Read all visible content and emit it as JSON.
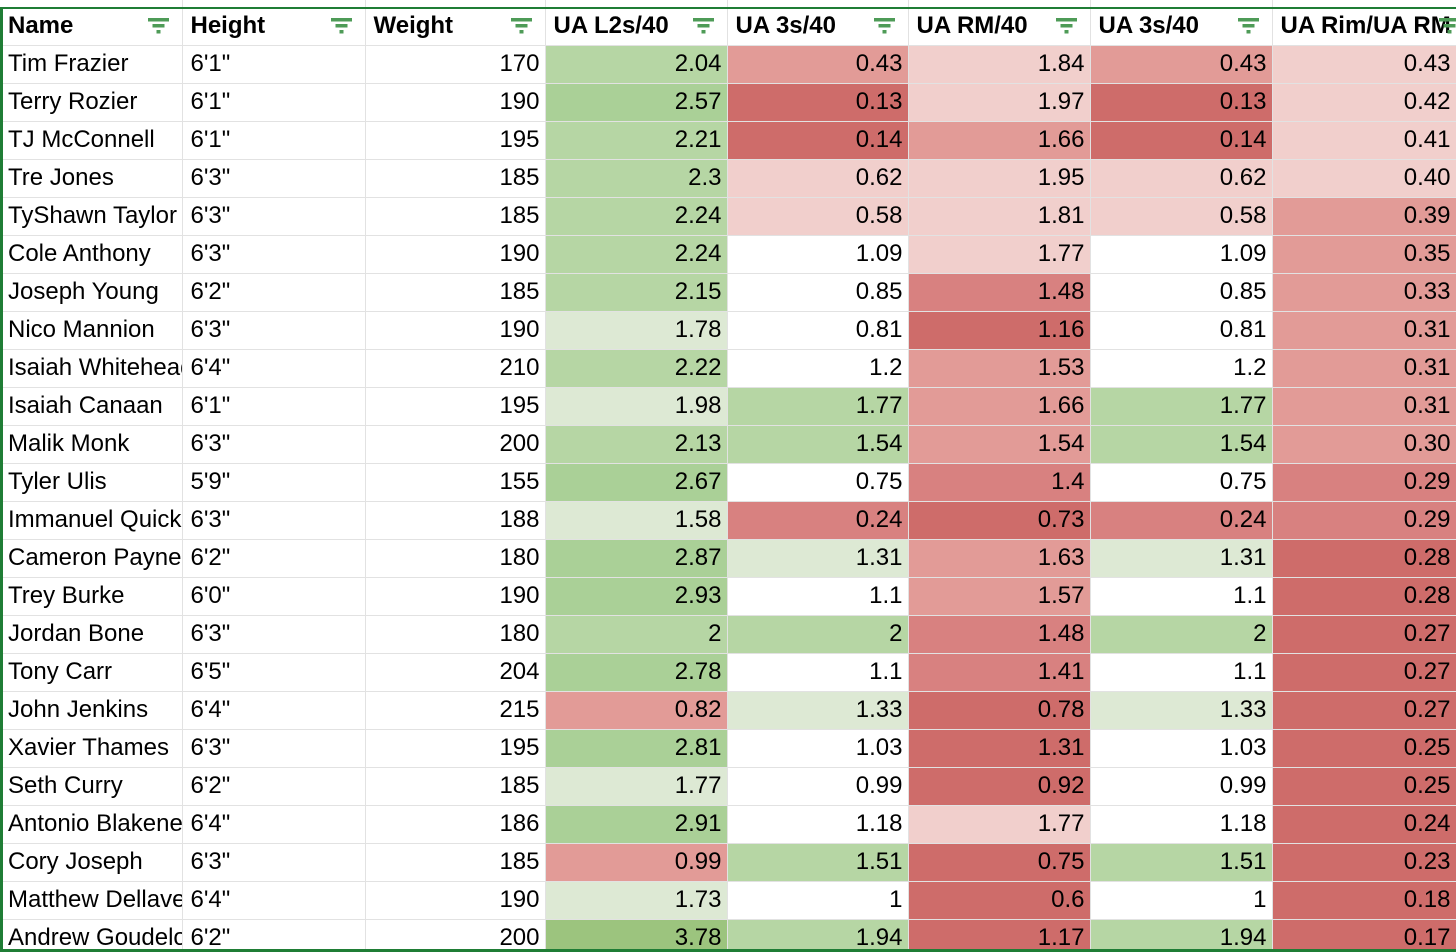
{
  "app": {
    "type": "spreadsheet",
    "description": "player athletic testing table with red-green conditional formatting and active filter range"
  },
  "colors": {
    "filter_range_border": "#1f7d35",
    "filter_icon_green": "#4e9b57",
    "gridline": "#e2e2e2",
    "header_bg": "#ffffff",
    "text": "#000000"
  },
  "palette": {
    "G1": "#dde9d4",
    "G2": "#b6d6a4",
    "G3": "#aad097",
    "G4": "#9cc47e",
    "W": "#ffffff",
    "R1": "#f1cfcc",
    "R2": "#e29b97",
    "R3": "#d88180",
    "R4": "#ce6c6a"
  },
  "table": {
    "columns": [
      {
        "label": "Name",
        "align": "left",
        "filter_icon": true
      },
      {
        "label": "Height",
        "align": "left",
        "filter_icon": true
      },
      {
        "label": "Weight",
        "align": "right",
        "filter_icon": true
      },
      {
        "label": "UA L2s/40",
        "align": "right",
        "filter_icon": true
      },
      {
        "label": "UA 3s/40",
        "align": "right",
        "filter_icon": true
      },
      {
        "label": "UA RM/40",
        "align": "right",
        "filter_icon": true
      },
      {
        "label": "UA 3s/40",
        "align": "right",
        "filter_icon": true
      },
      {
        "label": "UA Rim/UA RM",
        "align": "right",
        "filter_icon": true
      }
    ],
    "rows": [
      {
        "name": "Tim Frazier",
        "height": "6'1\"",
        "weight": "170",
        "cells": [
          {
            "v": "2.04",
            "c": "G2"
          },
          {
            "v": "0.43",
            "c": "R2"
          },
          {
            "v": "1.84",
            "c": "R1"
          },
          {
            "v": "0.43",
            "c": "R2"
          },
          {
            "v": "0.43",
            "c": "R1"
          }
        ]
      },
      {
        "name": "Terry Rozier",
        "height": "6'1\"",
        "weight": "190",
        "cells": [
          {
            "v": "2.57",
            "c": "G3"
          },
          {
            "v": "0.13",
            "c": "R4"
          },
          {
            "v": "1.97",
            "c": "R1"
          },
          {
            "v": "0.13",
            "c": "R4"
          },
          {
            "v": "0.42",
            "c": "R1"
          }
        ]
      },
      {
        "name": "TJ McConnell",
        "height": "6'1\"",
        "weight": "195",
        "cells": [
          {
            "v": "2.21",
            "c": "G2"
          },
          {
            "v": "0.14",
            "c": "R4"
          },
          {
            "v": "1.66",
            "c": "R2"
          },
          {
            "v": "0.14",
            "c": "R4"
          },
          {
            "v": "0.41",
            "c": "R1"
          }
        ]
      },
      {
        "name": "Tre Jones",
        "height": "6'3\"",
        "weight": "185",
        "cells": [
          {
            "v": "2.3",
            "c": "G2"
          },
          {
            "v": "0.62",
            "c": "R1"
          },
          {
            "v": "1.95",
            "c": "R1"
          },
          {
            "v": "0.62",
            "c": "R1"
          },
          {
            "v": "0.40",
            "c": "R1"
          }
        ]
      },
      {
        "name": "TyShawn Taylor",
        "height": "6'3\"",
        "weight": "185",
        "cells": [
          {
            "v": "2.24",
            "c": "G2"
          },
          {
            "v": "0.58",
            "c": "R1"
          },
          {
            "v": "1.81",
            "c": "R1"
          },
          {
            "v": "0.58",
            "c": "R1"
          },
          {
            "v": "0.39",
            "c": "R2"
          }
        ]
      },
      {
        "name": "Cole Anthony",
        "height": "6'3\"",
        "weight": "190",
        "cells": [
          {
            "v": "2.24",
            "c": "G2"
          },
          {
            "v": "1.09",
            "c": "W"
          },
          {
            "v": "1.77",
            "c": "R1"
          },
          {
            "v": "1.09",
            "c": "W"
          },
          {
            "v": "0.35",
            "c": "R2"
          }
        ]
      },
      {
        "name": "Joseph Young",
        "height": "6'2\"",
        "weight": "185",
        "cells": [
          {
            "v": "2.15",
            "c": "G2"
          },
          {
            "v": "0.85",
            "c": "W"
          },
          {
            "v": "1.48",
            "c": "R3"
          },
          {
            "v": "0.85",
            "c": "W"
          },
          {
            "v": "0.33",
            "c": "R2"
          }
        ]
      },
      {
        "name": "Nico Mannion",
        "height": "6'3\"",
        "weight": "190",
        "cells": [
          {
            "v": "1.78",
            "c": "G1"
          },
          {
            "v": "0.81",
            "c": "W"
          },
          {
            "v": "1.16",
            "c": "R4"
          },
          {
            "v": "0.81",
            "c": "W"
          },
          {
            "v": "0.31",
            "c": "R2"
          }
        ]
      },
      {
        "name": "Isaiah Whitehead",
        "height": "6'4\"",
        "weight": "210",
        "cells": [
          {
            "v": "2.22",
            "c": "G2"
          },
          {
            "v": "1.2",
            "c": "W"
          },
          {
            "v": "1.53",
            "c": "R2"
          },
          {
            "v": "1.2",
            "c": "W"
          },
          {
            "v": "0.31",
            "c": "R2"
          }
        ]
      },
      {
        "name": "Isaiah Canaan",
        "height": "6'1\"",
        "weight": "195",
        "cells": [
          {
            "v": "1.98",
            "c": "G1"
          },
          {
            "v": "1.77",
            "c": "G2"
          },
          {
            "v": "1.66",
            "c": "R2"
          },
          {
            "v": "1.77",
            "c": "G2"
          },
          {
            "v": "0.31",
            "c": "R2"
          }
        ]
      },
      {
        "name": "Malik Monk",
        "height": "6'3\"",
        "weight": "200",
        "cells": [
          {
            "v": "2.13",
            "c": "G2"
          },
          {
            "v": "1.54",
            "c": "G2"
          },
          {
            "v": "1.54",
            "c": "R2"
          },
          {
            "v": "1.54",
            "c": "G2"
          },
          {
            "v": "0.30",
            "c": "R2"
          }
        ]
      },
      {
        "name": "Tyler Ulis",
        "height": "5'9\"",
        "weight": "155",
        "cells": [
          {
            "v": "2.67",
            "c": "G3"
          },
          {
            "v": "0.75",
            "c": "W"
          },
          {
            "v": "1.4",
            "c": "R3"
          },
          {
            "v": "0.75",
            "c": "W"
          },
          {
            "v": "0.29",
            "c": "R3"
          }
        ]
      },
      {
        "name": "Immanuel Quickley",
        "height": "6'3\"",
        "weight": "188",
        "cells": [
          {
            "v": "1.58",
            "c": "G1"
          },
          {
            "v": "0.24",
            "c": "R3"
          },
          {
            "v": "0.73",
            "c": "R4"
          },
          {
            "v": "0.24",
            "c": "R3"
          },
          {
            "v": "0.29",
            "c": "R3"
          }
        ]
      },
      {
        "name": "Cameron Payne",
        "height": "6'2\"",
        "weight": "180",
        "cells": [
          {
            "v": "2.87",
            "c": "G3"
          },
          {
            "v": "1.31",
            "c": "G1"
          },
          {
            "v": "1.63",
            "c": "R2"
          },
          {
            "v": "1.31",
            "c": "G1"
          },
          {
            "v": "0.28",
            "c": "R4"
          }
        ]
      },
      {
        "name": "Trey Burke",
        "height": "6'0\"",
        "weight": "190",
        "cells": [
          {
            "v": "2.93",
            "c": "G3"
          },
          {
            "v": "1.1",
            "c": "W"
          },
          {
            "v": "1.57",
            "c": "R2"
          },
          {
            "v": "1.1",
            "c": "W"
          },
          {
            "v": "0.28",
            "c": "R4"
          }
        ]
      },
      {
        "name": "Jordan Bone",
        "height": "6'3\"",
        "weight": "180",
        "cells": [
          {
            "v": "2",
            "c": "G2"
          },
          {
            "v": "2",
            "c": "G2"
          },
          {
            "v": "1.48",
            "c": "R3"
          },
          {
            "v": "2",
            "c": "G2"
          },
          {
            "v": "0.27",
            "c": "R4"
          }
        ]
      },
      {
        "name": "Tony Carr",
        "height": "6'5\"",
        "weight": "204",
        "cells": [
          {
            "v": "2.78",
            "c": "G3"
          },
          {
            "v": "1.1",
            "c": "W"
          },
          {
            "v": "1.41",
            "c": "R3"
          },
          {
            "v": "1.1",
            "c": "W"
          },
          {
            "v": "0.27",
            "c": "R4"
          }
        ]
      },
      {
        "name": "John Jenkins",
        "height": "6'4\"",
        "weight": "215",
        "cells": [
          {
            "v": "0.82",
            "c": "R2"
          },
          {
            "v": "1.33",
            "c": "G1"
          },
          {
            "v": "0.78",
            "c": "R4"
          },
          {
            "v": "1.33",
            "c": "G1"
          },
          {
            "v": "0.27",
            "c": "R4"
          }
        ]
      },
      {
        "name": "Xavier Thames",
        "height": "6'3\"",
        "weight": "195",
        "cells": [
          {
            "v": "2.81",
            "c": "G3"
          },
          {
            "v": "1.03",
            "c": "W"
          },
          {
            "v": "1.31",
            "c": "R4"
          },
          {
            "v": "1.03",
            "c": "W"
          },
          {
            "v": "0.25",
            "c": "R4"
          }
        ]
      },
      {
        "name": "Seth Curry",
        "height": "6'2\"",
        "weight": "185",
        "cells": [
          {
            "v": "1.77",
            "c": "G1"
          },
          {
            "v": "0.99",
            "c": "W"
          },
          {
            "v": "0.92",
            "c": "R4"
          },
          {
            "v": "0.99",
            "c": "W"
          },
          {
            "v": "0.25",
            "c": "R4"
          }
        ]
      },
      {
        "name": "Antonio Blakeney",
        "height": "6'4\"",
        "weight": "186",
        "cells": [
          {
            "v": "2.91",
            "c": "G3"
          },
          {
            "v": "1.18",
            "c": "W"
          },
          {
            "v": "1.77",
            "c": "R1"
          },
          {
            "v": "1.18",
            "c": "W"
          },
          {
            "v": "0.24",
            "c": "R4"
          }
        ]
      },
      {
        "name": "Cory Joseph",
        "height": "6'3\"",
        "weight": "185",
        "cells": [
          {
            "v": "0.99",
            "c": "R2"
          },
          {
            "v": "1.51",
            "c": "G2"
          },
          {
            "v": "0.75",
            "c": "R4"
          },
          {
            "v": "1.51",
            "c": "G2"
          },
          {
            "v": "0.23",
            "c": "R4"
          }
        ]
      },
      {
        "name": "Matthew Dellavedova",
        "height": "6'4\"",
        "weight": "190",
        "cells": [
          {
            "v": "1.73",
            "c": "G1"
          },
          {
            "v": "1",
            "c": "W"
          },
          {
            "v": "0.6",
            "c": "R4"
          },
          {
            "v": "1",
            "c": "W"
          },
          {
            "v": "0.18",
            "c": "R4"
          }
        ]
      },
      {
        "name": "Andrew Goudelock",
        "height": "6'2\"",
        "weight": "200",
        "cells": [
          {
            "v": "3.78",
            "c": "G4"
          },
          {
            "v": "1.94",
            "c": "G2"
          },
          {
            "v": "1.17",
            "c": "R4"
          },
          {
            "v": "1.94",
            "c": "G2"
          },
          {
            "v": "0.17",
            "c": "R4"
          }
        ]
      }
    ]
  }
}
